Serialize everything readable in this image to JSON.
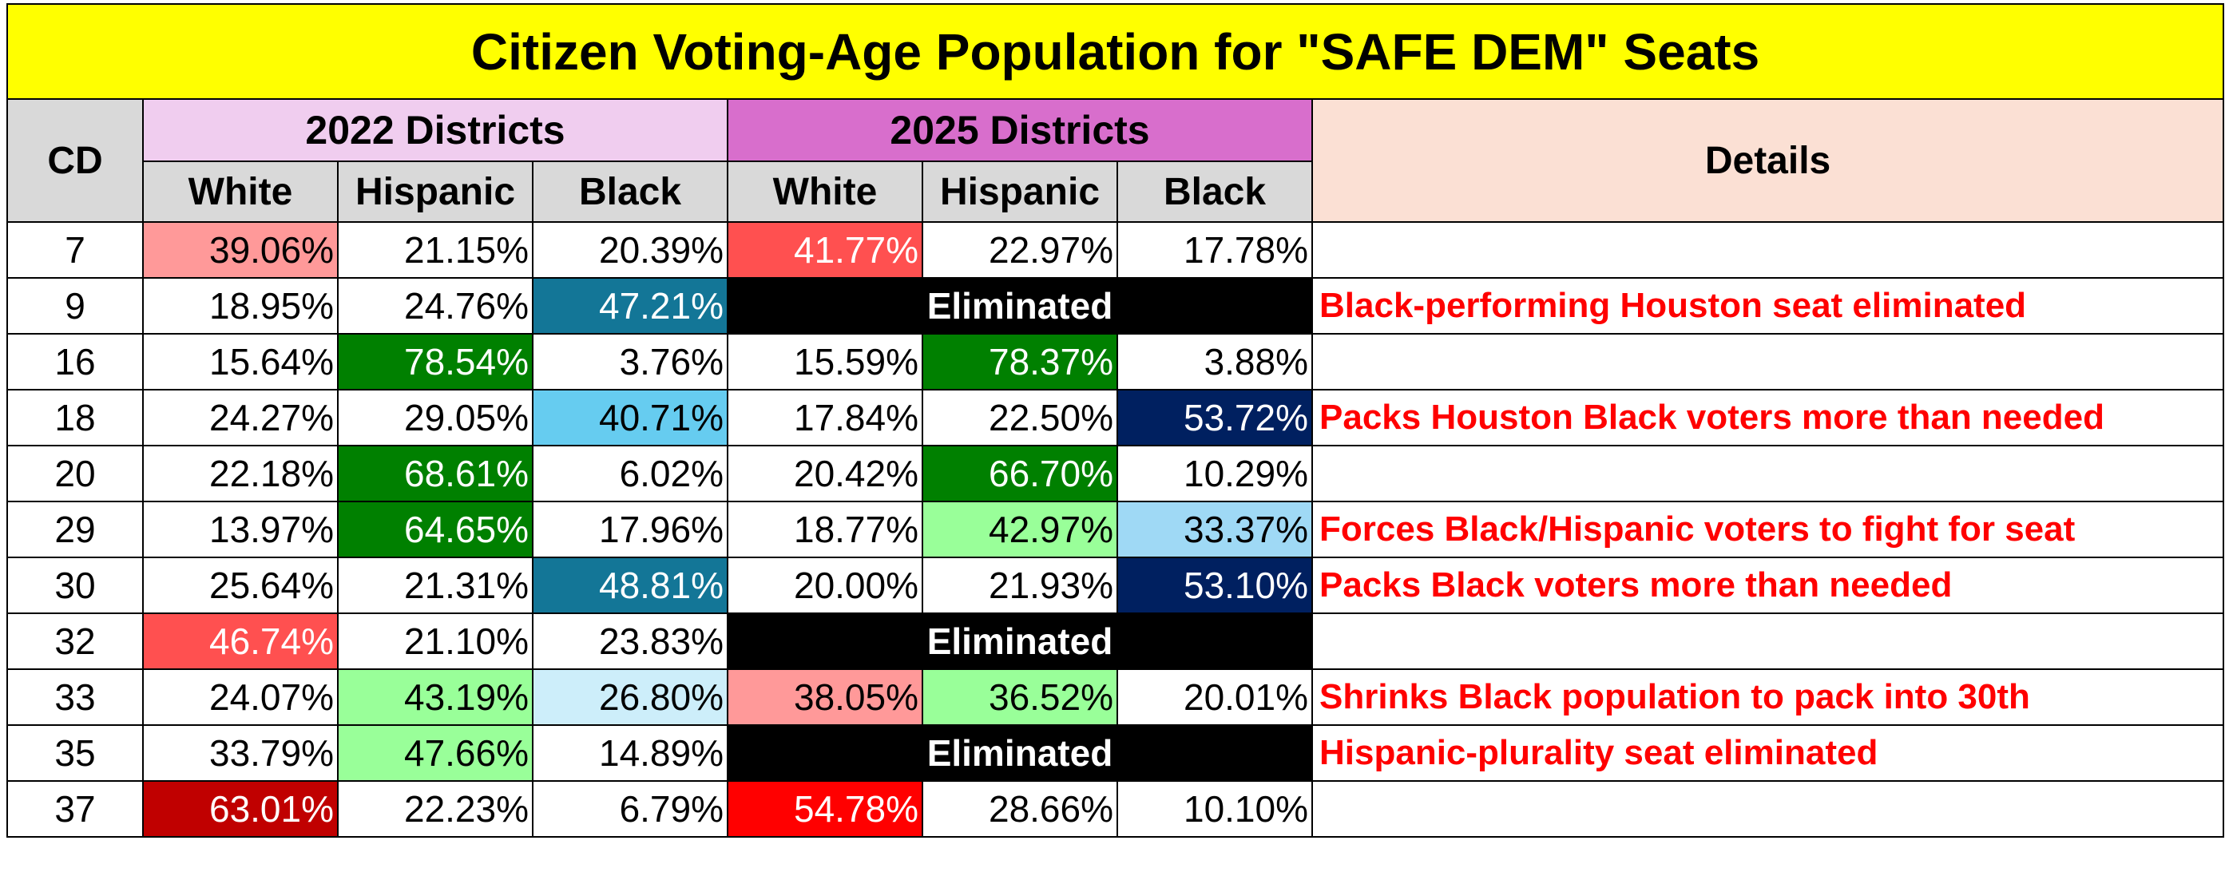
{
  "title": "Citizen Voting-Age Population for \"SAFE DEM\" Seats",
  "headers": {
    "cd": "CD",
    "group_2022": "2022 Districts",
    "group_2025": "2025 Districts",
    "details": "Details",
    "white": "White",
    "hispanic": "Hispanic",
    "black": "Black"
  },
  "colors": {
    "title_bg": "#ffff00",
    "header_bg": "#d9d9d9",
    "group_2022_bg": "#f0cdef",
    "group_2025_bg": "#d86ecc",
    "details_bg": "#fbe0d4",
    "detail_text": "#ff0000"
  },
  "rows": [
    {
      "cd": "7",
      "w22": "39.06%",
      "h22": "21.15%",
      "b22": "20.39%",
      "w25": "41.77%",
      "h25": "22.97%",
      "b25": "17.78%",
      "eliminated": "",
      "details": "",
      "c": {
        "w22": "#ff9999",
        "w25": "#ff5050"
      }
    },
    {
      "cd": "9",
      "w22": "18.95%",
      "h22": "24.76%",
      "b22": "47.21%",
      "w25": "",
      "h25": "",
      "b25": "",
      "eliminated": "Eliminated",
      "details": "Black-performing Houston seat eliminated",
      "c": {
        "b22": "#137697"
      }
    },
    {
      "cd": "16",
      "w22": "15.64%",
      "h22": "78.54%",
      "b22": "3.76%",
      "w25": "15.59%",
      "h25": "78.37%",
      "b25": "3.88%",
      "eliminated": "",
      "details": "",
      "c": {
        "h22": "#008000",
        "h25": "#008000"
      }
    },
    {
      "cd": "18",
      "w22": "24.27%",
      "h22": "29.05%",
      "b22": "40.71%",
      "w25": "17.84%",
      "h25": "22.50%",
      "b25": "53.72%",
      "eliminated": "",
      "details": "Packs Houston Black voters more than needed",
      "c": {
        "b22": "#66ccf0",
        "b25": "#002060"
      }
    },
    {
      "cd": "20",
      "w22": "22.18%",
      "h22": "68.61%",
      "b22": "6.02%",
      "w25": "20.42%",
      "h25": "66.70%",
      "b25": "10.29%",
      "eliminated": "",
      "details": "",
      "c": {
        "h22": "#008000",
        "h25": "#008000"
      }
    },
    {
      "cd": "29",
      "w22": "13.97%",
      "h22": "64.65%",
      "b22": "17.96%",
      "w25": "18.77%",
      "h25": "42.97%",
      "b25": "33.37%",
      "eliminated": "",
      "details": "Forces Black/Hispanic voters to fight for seat",
      "c": {
        "h22": "#008000",
        "h25": "#99ff99",
        "b25": "#9fd9f5"
      }
    },
    {
      "cd": "30",
      "w22": "25.64%",
      "h22": "21.31%",
      "b22": "48.81%",
      "w25": "20.00%",
      "h25": "21.93%",
      "b25": "53.10%",
      "eliminated": "",
      "details": "Packs Black voters more than needed",
      "c": {
        "b22": "#137697",
        "b25": "#002060"
      }
    },
    {
      "cd": "32",
      "w22": "46.74%",
      "h22": "21.10%",
      "b22": "23.83%",
      "w25": "",
      "h25": "",
      "b25": "",
      "eliminated": "Eliminated",
      "details": "",
      "c": {
        "w22": "#ff5050"
      }
    },
    {
      "cd": "33",
      "w22": "24.07%",
      "h22": "43.19%",
      "b22": "26.80%",
      "w25": "38.05%",
      "h25": "36.52%",
      "b25": "20.01%",
      "eliminated": "",
      "details": "Shrinks Black population to pack into 30th",
      "c": {
        "h22": "#99ff99",
        "b22": "#cdeefa",
        "w25": "#ff9999",
        "h25": "#99ff99"
      }
    },
    {
      "cd": "35",
      "w22": "33.79%",
      "h22": "47.66%",
      "b22": "14.89%",
      "w25": "",
      "h25": "",
      "b25": "",
      "eliminated": "Eliminated",
      "details": "Hispanic-plurality seat eliminated",
      "c": {
        "h22": "#99ff99"
      }
    },
    {
      "cd": "37",
      "w22": "63.01%",
      "h22": "22.23%",
      "b22": "6.79%",
      "w25": "54.78%",
      "h25": "28.66%",
      "b25": "10.10%",
      "eliminated": "",
      "details": "",
      "c": {
        "w22": "#c00000",
        "w25": "#ff0000"
      }
    }
  ]
}
